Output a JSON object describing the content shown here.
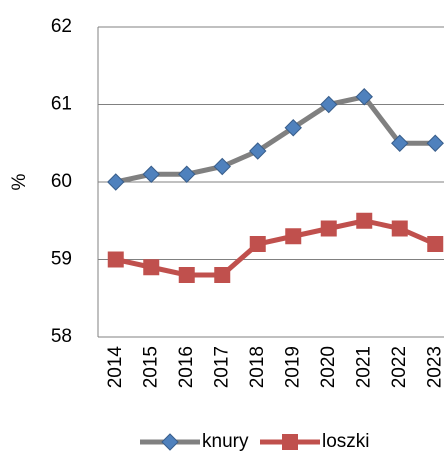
{
  "chart_data": {
    "type": "line",
    "y_label": "%",
    "categories": [
      "2014",
      "2015",
      "2016",
      "2017",
      "2018",
      "2019",
      "2020",
      "2021",
      "2022",
      "2023"
    ],
    "series": [
      {
        "name": "knury",
        "color": "#808080",
        "marker_color": "#4f81bd",
        "marker": "diamond",
        "values": [
          60.0,
          60.1,
          60.1,
          60.2,
          60.4,
          60.7,
          61.0,
          61.1,
          60.5,
          60.5
        ]
      },
      {
        "name": "loszki",
        "color": "#c0504d",
        "marker_color": "#c0504d",
        "marker": "square",
        "values": [
          59.0,
          58.9,
          58.8,
          58.8,
          59.2,
          59.3,
          59.4,
          59.5,
          59.4,
          59.2
        ]
      }
    ],
    "ylim": [
      58,
      62
    ],
    "yticks": [
      58,
      59,
      60,
      61,
      62
    ],
    "grid": true
  }
}
